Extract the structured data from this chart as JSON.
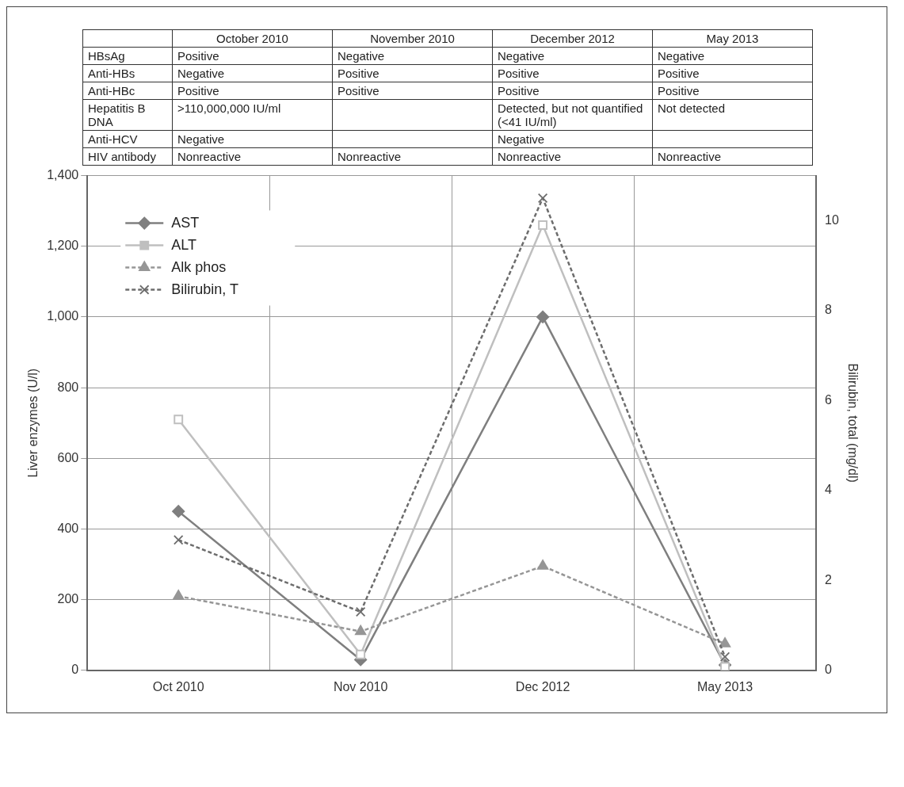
{
  "chart_data": [
    {
      "type": "other",
      "categories": [
        null,
        "October 2010",
        "November 2010",
        "December 2012",
        "May 2013"
      ],
      "y_categories": [
        "HBsAg",
        "Anti-HBs",
        "Anti-HBc",
        "Hepatitis B DNA",
        "Anti-HCV",
        "HIV antibody"
      ],
      "cell_labels": [
        [
          "Positive",
          "Negative",
          "Negative",
          "Negative"
        ],
        [
          "Negative",
          "Positive",
          "Positive",
          "Positive"
        ],
        [
          "Positive",
          "Positive",
          "Positive",
          "Positive"
        ],
        [
          ">110,000,000 IU/ml",
          null,
          "Detected, but not quantified (<41 IU/ml)",
          "Not detected"
        ],
        [
          "Negative",
          null,
          "Negative",
          null
        ],
        [
          "Nonreactive",
          "Nonreactive",
          "Nonreactive",
          "Nonreactive"
        ]
      ]
    },
    {
      "type": "line",
      "categories": [
        "Oct 2010",
        "Nov 2010",
        "Dec 2012",
        "May 2013"
      ],
      "ylabel": "Liver enzymes (U/l)",
      "y2label": "Bilirubin, total (mg/dl)",
      "ylim": [
        0,
        1400
      ],
      "yticks": [
        0,
        200,
        400,
        600,
        800,
        {
          "value": 1000,
          "label": "1,000"
        },
        {
          "value": 1200,
          "label": "1,200"
        },
        {
          "value": 1400,
          "label": "1,400"
        }
      ],
      "y2lim": [
        0,
        11
      ],
      "y2ticks": [
        0,
        2,
        4,
        6,
        8,
        10
      ],
      "grid": true,
      "legend": "top left",
      "series": [
        {
          "name": "AST",
          "color": "#7f7f7f",
          "marker": "diamond",
          "line_style": "solid",
          "values": [
            450,
            30,
            1000,
            15
          ]
        },
        {
          "name": "ALT",
          "color": "#bfbfbf",
          "marker": "square",
          "line_style": "solid",
          "values": [
            710,
            45,
            1260,
            10
          ]
        },
        {
          "name": "Alk phos",
          "color": "#969696",
          "marker": "triangle",
          "line_style": "dashed",
          "values": [
            210,
            110,
            295,
            75
          ]
        },
        {
          "name": "Bilirubin, T",
          "color": "#6d6d6d",
          "marker": "cross",
          "line_style": "dashed",
          "axis": "y2",
          "values": [
            2.9,
            1.3,
            10.5,
            0.3
          ]
        }
      ]
    }
  ]
}
